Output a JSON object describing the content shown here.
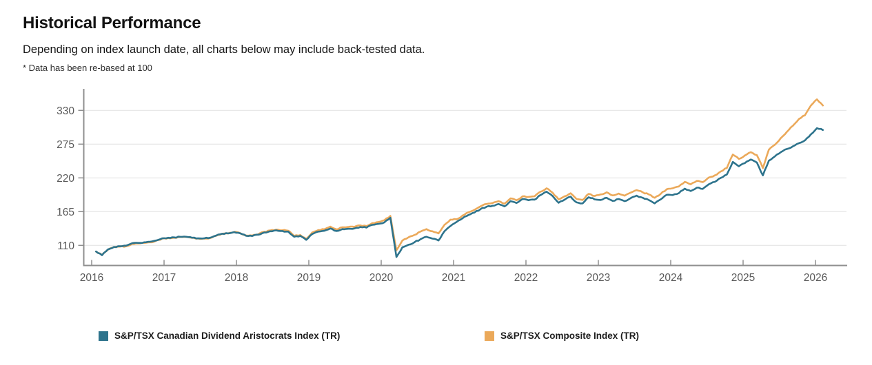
{
  "header": {
    "title": "Historical Performance",
    "subtitle": "Depending on index launch date, all charts below may include back-tested data.",
    "footnote": "* Data has been re-based at 100"
  },
  "chart_data": {
    "type": "line",
    "title": "Historical Performance",
    "xlabel": "",
    "ylabel": "",
    "grid": true,
    "legend_position": "bottom",
    "x_ticks": [
      2016,
      2017,
      2018,
      2019,
      2020,
      2021,
      2022,
      2023,
      2024,
      2025,
      2026
    ],
    "y_ticks": [
      110,
      165,
      220,
      275,
      330
    ],
    "xlim": [
      2015.89,
      2026.43
    ],
    "ylim": [
      75,
      364
    ],
    "x_start": 2016.06,
    "x_step": 0.083,
    "colors": {
      "axis": "#8f8f8f",
      "grid": "#e4e4e4",
      "tick_label": "#595959"
    },
    "series": [
      {
        "name": "S&P/TSX Canadian Dividend Aristocrats Index (TR)",
        "color": "#2D738C",
        "values": [
          100,
          94,
          103.5,
          107.5,
          108.5,
          109.5,
          113.5,
          114,
          115,
          116,
          118,
          121.5,
          122.5,
          123,
          124,
          124,
          122.5,
          121.5,
          121.5,
          122.5,
          126,
          129,
          129.5,
          131.5,
          129.5,
          125.5,
          125.3,
          127.4,
          131,
          133,
          134.5,
          133.5,
          132.5,
          124,
          125.5,
          119,
          128.5,
          132.5,
          133.8,
          137.5,
          133.5,
          136.5,
          137,
          137.5,
          140,
          139,
          143.5,
          145,
          147.5,
          155,
          91,
          107,
          111,
          115,
          120,
          124,
          121,
          118,
          133,
          141.5,
          148,
          154,
          159.5,
          163.5,
          169,
          173,
          174.5,
          177.5,
          173.5,
          182,
          179,
          185.5,
          183.5,
          184.5,
          192,
          197.5,
          190.5,
          179.5,
          184.5,
          189.5,
          180,
          178.5,
          188.5,
          185,
          184,
          187.5,
          182.5,
          185.5,
          182,
          187,
          191,
          187.5,
          184,
          178.5,
          185,
          192.5,
          192,
          195,
          202.5,
          198.5,
          204,
          202,
          209.5,
          213.5,
          220,
          225.5,
          246,
          239,
          244,
          250,
          245,
          224,
          248,
          255,
          262,
          267,
          271.5,
          276.5,
          281,
          291,
          301,
          298
        ]
      },
      {
        "name": "S&P/TSX Composite Index (TR)",
        "color": "#EBA95A",
        "values": [
          100,
          94.5,
          103,
          107,
          108,
          108.5,
          112.5,
          113,
          114,
          115,
          117.5,
          121,
          122,
          122.5,
          123.6,
          123.8,
          122.3,
          121.3,
          121.2,
          122,
          125.6,
          129,
          129.5,
          132,
          130,
          126.2,
          126,
          128.1,
          132.1,
          134.3,
          135.7,
          134.6,
          133.9,
          125.4,
          127,
          120.5,
          131,
          135,
          136.3,
          140.6,
          136.1,
          139.5,
          140,
          140.2,
          142.5,
          141.4,
          146.4,
          148,
          151,
          158,
          102,
          118,
          123,
          127,
          132.5,
          136.5,
          133,
          129.5,
          143.5,
          152,
          152.5,
          158.5,
          164,
          168,
          173.5,
          177.5,
          179,
          182,
          178,
          186.5,
          183.5,
          190,
          189,
          190,
          197.5,
          203,
          196,
          185,
          190,
          195,
          185.5,
          184,
          194,
          190.5,
          193,
          196.5,
          191.5,
          194.5,
          191,
          196,
          200,
          196.5,
          193,
          187.5,
          194,
          201.5,
          203,
          206,
          213.5,
          209.5,
          215,
          213,
          220.5,
          224,
          230.5,
          236,
          258,
          251,
          256.5,
          262,
          257,
          236,
          266,
          274,
          285,
          295,
          305,
          316,
          322,
          338,
          348,
          338
        ]
      }
    ]
  }
}
